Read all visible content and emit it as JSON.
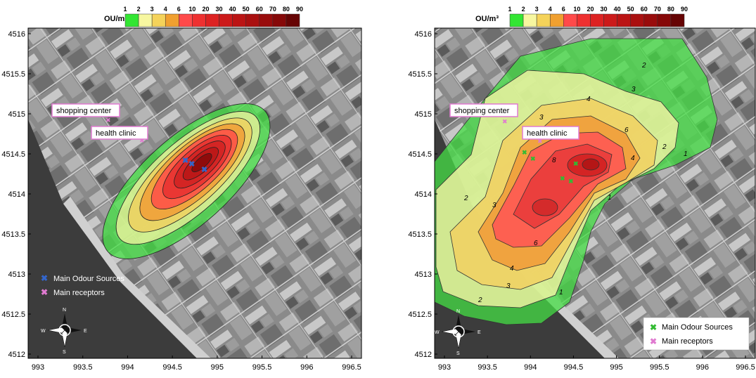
{
  "colorbar": {
    "unit": "OU/m³",
    "ticks": [
      "1",
      "2",
      "3",
      "4",
      "6",
      "10",
      "20",
      "30",
      "40",
      "50",
      "60",
      "70",
      "80",
      "90"
    ],
    "colors": [
      "#33e633",
      "#f7f7a0",
      "#f5d35a",
      "#f0a030",
      "#ff4a4a",
      "#ee3030",
      "#dd2222",
      "#cc1a1a",
      "#bb1414",
      "#aa1010",
      "#990c0c",
      "#860808",
      "#660404"
    ]
  },
  "maps": [
    {
      "id": "left",
      "x_ticks": [
        "993",
        "993.5",
        "994",
        "994.5",
        "995",
        "995.5",
        "996",
        "996.5"
      ],
      "y_ticks": [
        "4516",
        "4515.5",
        "4515",
        "4514.5",
        "4514",
        "4513.5",
        "4513",
        "4512.5",
        "4512"
      ],
      "labels": {
        "shopping_center": "shopping center",
        "health_clinic": "health clinic"
      },
      "legend": {
        "sources": "Main Odour Sources",
        "receptors": "Main receptors"
      },
      "compass": {
        "n": "N",
        "s": "S",
        "e": "E",
        "w": "W"
      },
      "source_color": "#3366cc",
      "receptor_color": "#e07ad0"
    },
    {
      "id": "right",
      "x_ticks": [
        "993",
        "993.5",
        "994",
        "994.5",
        "995",
        "995.5",
        "996",
        "996.5"
      ],
      "y_ticks": [
        "4516",
        "4515.5",
        "4515",
        "4514.5",
        "4514",
        "4513.5",
        "4513",
        "4512.5",
        "4512"
      ],
      "labels": {
        "shopping_center": "shopping center",
        "health_clinic": "health clinic"
      },
      "legend": {
        "sources": "Main Odour Sources",
        "receptors": "Main receptors"
      },
      "compass": {
        "n": "N",
        "s": "S",
        "e": "E",
        "w": "W"
      },
      "contour_labels": [
        "2",
        "2",
        "2",
        "2",
        "3",
        "3",
        "3",
        "3",
        "4",
        "4",
        "4",
        "6",
        "6",
        "8",
        "1",
        "1",
        "1"
      ],
      "source_color": "#33bb33",
      "receptor_color": "#e07ad0"
    }
  ]
}
